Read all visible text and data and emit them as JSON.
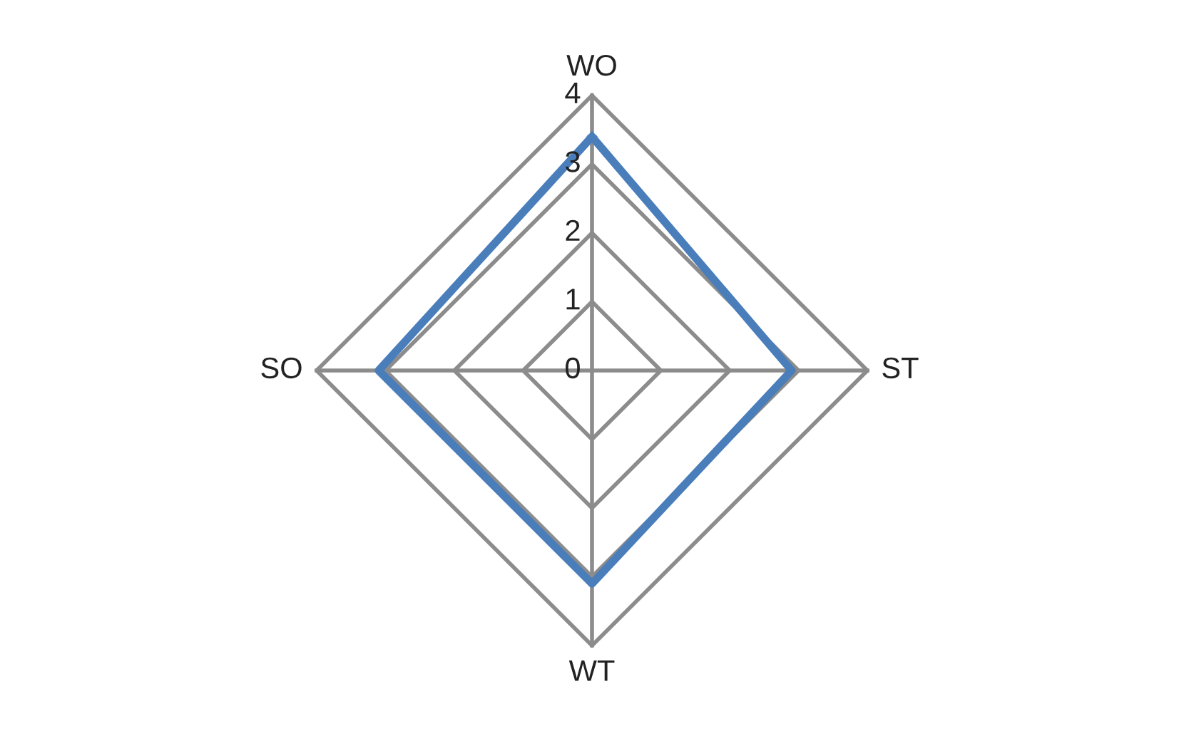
{
  "chart_data": {
    "type": "radar",
    "categories": [
      "WO",
      "ST",
      "WT",
      "SO"
    ],
    "series": [
      {
        "color": "#4a7ebb",
        "values": [
          3.4,
          2.9,
          3.1,
          3.1
        ]
      }
    ],
    "ylim": [
      0,
      4
    ],
    "yticks": [
      0,
      1,
      2,
      3,
      4
    ],
    "grid": true,
    "legend": false,
    "marker": "none",
    "line_style": "solid"
  }
}
